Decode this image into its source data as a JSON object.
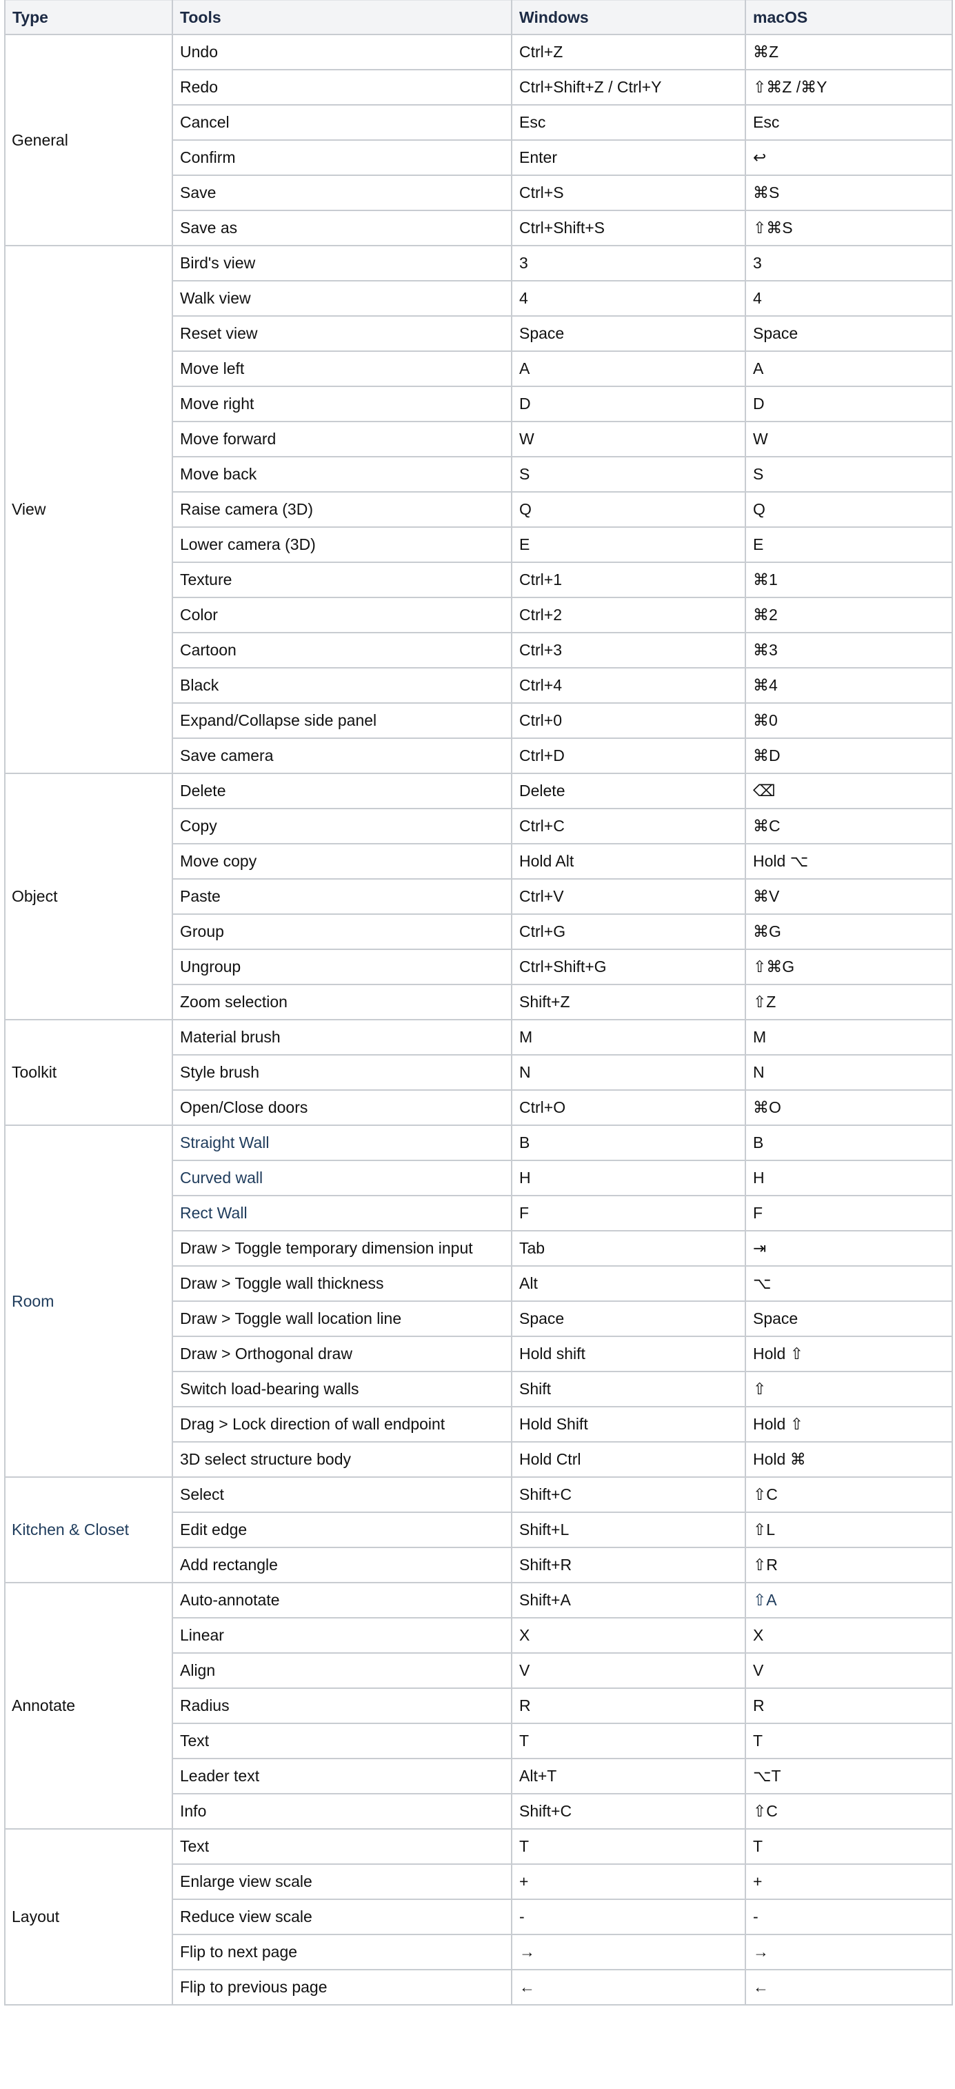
{
  "accent_color": "#1f3c5c",
  "header": {
    "type": "Type",
    "tools": "Tools",
    "windows": "Windows",
    "macos": "macOS"
  },
  "groups": [
    {
      "type": "General",
      "rows": [
        {
          "tool": "Undo",
          "windows": "Ctrl+Z",
          "macos": "⌘Z"
        },
        {
          "tool": "Redo",
          "windows": "Ctrl+Shift+Z / Ctrl+Y",
          "macos": "⇧⌘Z /⌘Y"
        },
        {
          "tool": "Cancel",
          "windows": "Esc",
          "macos": "Esc"
        },
        {
          "tool": "Confirm",
          "windows": "Enter",
          "macos": "↩"
        },
        {
          "tool": "Save",
          "windows": "Ctrl+S",
          "macos": "⌘S"
        },
        {
          "tool": "Save as",
          "windows": "Ctrl+Shift+S",
          "macos": "⇧⌘S"
        }
      ]
    },
    {
      "type": "View",
      "rows": [
        {
          "tool": "Bird's view",
          "windows": "3",
          "macos": "3"
        },
        {
          "tool": "Walk view",
          "windows": "4",
          "macos": "4"
        },
        {
          "tool": "Reset view",
          "windows": "Space",
          "macos": "Space"
        },
        {
          "tool": "Move left",
          "windows": "A",
          "macos": "A"
        },
        {
          "tool": "Move right",
          "windows": "D",
          "macos": "D"
        },
        {
          "tool": "Move forward",
          "windows": "W",
          "macos": "W"
        },
        {
          "tool": "Move back",
          "windows": "S",
          "macos": "S"
        },
        {
          "tool": "Raise camera (3D)",
          "windows": "Q",
          "macos": "Q"
        },
        {
          "tool": "Lower camera (3D)",
          "windows": "E",
          "macos": "E"
        },
        {
          "tool": "Texture",
          "windows": "Ctrl+1",
          "macos": "⌘1"
        },
        {
          "tool": "Color",
          "windows": "Ctrl+2",
          "macos": "⌘2"
        },
        {
          "tool": "Cartoon",
          "windows": "Ctrl+3",
          "macos": "⌘3"
        },
        {
          "tool": "Black",
          "windows": "Ctrl+4",
          "macos": "⌘4"
        },
        {
          "tool": "Expand/Collapse side panel",
          "windows": "Ctrl+0",
          "macos": "⌘0"
        },
        {
          "tool": "Save camera",
          "windows": "Ctrl+D",
          "macos": "⌘D"
        }
      ]
    },
    {
      "type": "Object",
      "rows": [
        {
          "tool": "Delete",
          "windows": "Delete",
          "macos": "⌫"
        },
        {
          "tool": "Copy",
          "windows": "Ctrl+C",
          "macos": "⌘C"
        },
        {
          "tool": "Move copy",
          "windows": "Hold Alt",
          "macos": "Hold ⌥"
        },
        {
          "tool": "Paste",
          "windows": "Ctrl+V",
          "macos": "⌘V"
        },
        {
          "tool": "Group",
          "windows": "Ctrl+G",
          "macos": "⌘G"
        },
        {
          "tool": "Ungroup",
          "windows": "Ctrl+Shift+G",
          "macos": "⇧⌘G"
        },
        {
          "tool": "Zoom selection",
          "windows": "Shift+Z",
          "macos": "⇧Z"
        }
      ]
    },
    {
      "type": "Toolkit",
      "rows": [
        {
          "tool": "Material brush",
          "windows": "M",
          "macos": "M"
        },
        {
          "tool": "Style brush",
          "windows": "N",
          "macos": "N"
        },
        {
          "tool": "Open/Close doors",
          "windows": "Ctrl+O",
          "macos": "⌘O"
        }
      ]
    },
    {
      "type": "Room",
      "type_link": true,
      "rows": [
        {
          "tool": "Straight Wall",
          "tool_link": true,
          "windows": "B",
          "macos": "B"
        },
        {
          "tool": "Curved wall",
          "tool_link": true,
          "windows": "H",
          "macos": "H"
        },
        {
          "tool": "Rect Wall",
          "tool_link": true,
          "windows": "F",
          "macos": "F"
        },
        {
          "tool": "Draw > Toggle temporary dimension input",
          "windows": "Tab",
          "macos": "⇥"
        },
        {
          "tool": "Draw > Toggle wall thickness",
          "windows": "Alt",
          "macos": "⌥"
        },
        {
          "tool": "Draw > Toggle wall location line",
          "windows": "Space",
          "macos": "Space"
        },
        {
          "tool": "Draw > Orthogonal draw",
          "windows": "Hold shift",
          "macos": "Hold ⇧"
        },
        {
          "tool": "Switch load-bearing walls",
          "windows": "Shift",
          "macos": "⇧"
        },
        {
          "tool": "Drag > Lock direction of wall endpoint",
          "windows": "Hold Shift",
          "macos": "Hold ⇧"
        },
        {
          "tool": "3D select structure body",
          "windows": "Hold Ctrl",
          "macos": "Hold ⌘"
        }
      ]
    },
    {
      "type": "Kitchen & Closet",
      "type_link": true,
      "rows": [
        {
          "tool": "Select",
          "windows": "Shift+C",
          "macos": "⇧C"
        },
        {
          "tool": "Edit edge",
          "windows": "Shift+L",
          "macos": "⇧L"
        },
        {
          "tool": "Add rectangle",
          "windows": "Shift+R",
          "macos": "⇧R"
        }
      ]
    },
    {
      "type": "Annotate",
      "rows": [
        {
          "tool": "Auto-annotate",
          "windows": "Shift+A",
          "macos": "⇧A",
          "macos_link": true
        },
        {
          "tool": "Linear",
          "windows": "X",
          "macos": "X"
        },
        {
          "tool": "Align",
          "windows": "V",
          "macos": "V"
        },
        {
          "tool": "Radius",
          "windows": "R",
          "macos": "R"
        },
        {
          "tool": "Text",
          "windows": "T",
          "macos": "T"
        },
        {
          "tool": "Leader text",
          "windows": "Alt+T",
          "macos": "⌥T"
        },
        {
          "tool": "Info",
          "windows": "Shift+C",
          "macos": "⇧C"
        }
      ]
    },
    {
      "type": "Layout",
      "rows": [
        {
          "tool": "Text",
          "windows": "T",
          "macos": "T"
        },
        {
          "tool": "Enlarge view scale",
          "windows": "+",
          "macos": "+"
        },
        {
          "tool": "Reduce view scale",
          "windows": "-",
          "macos": "-"
        },
        {
          "tool": "Flip to next page",
          "windows": "→",
          "macos": "→"
        },
        {
          "tool": "Flip to previous page",
          "windows": "←",
          "macos": "←"
        }
      ]
    }
  ]
}
